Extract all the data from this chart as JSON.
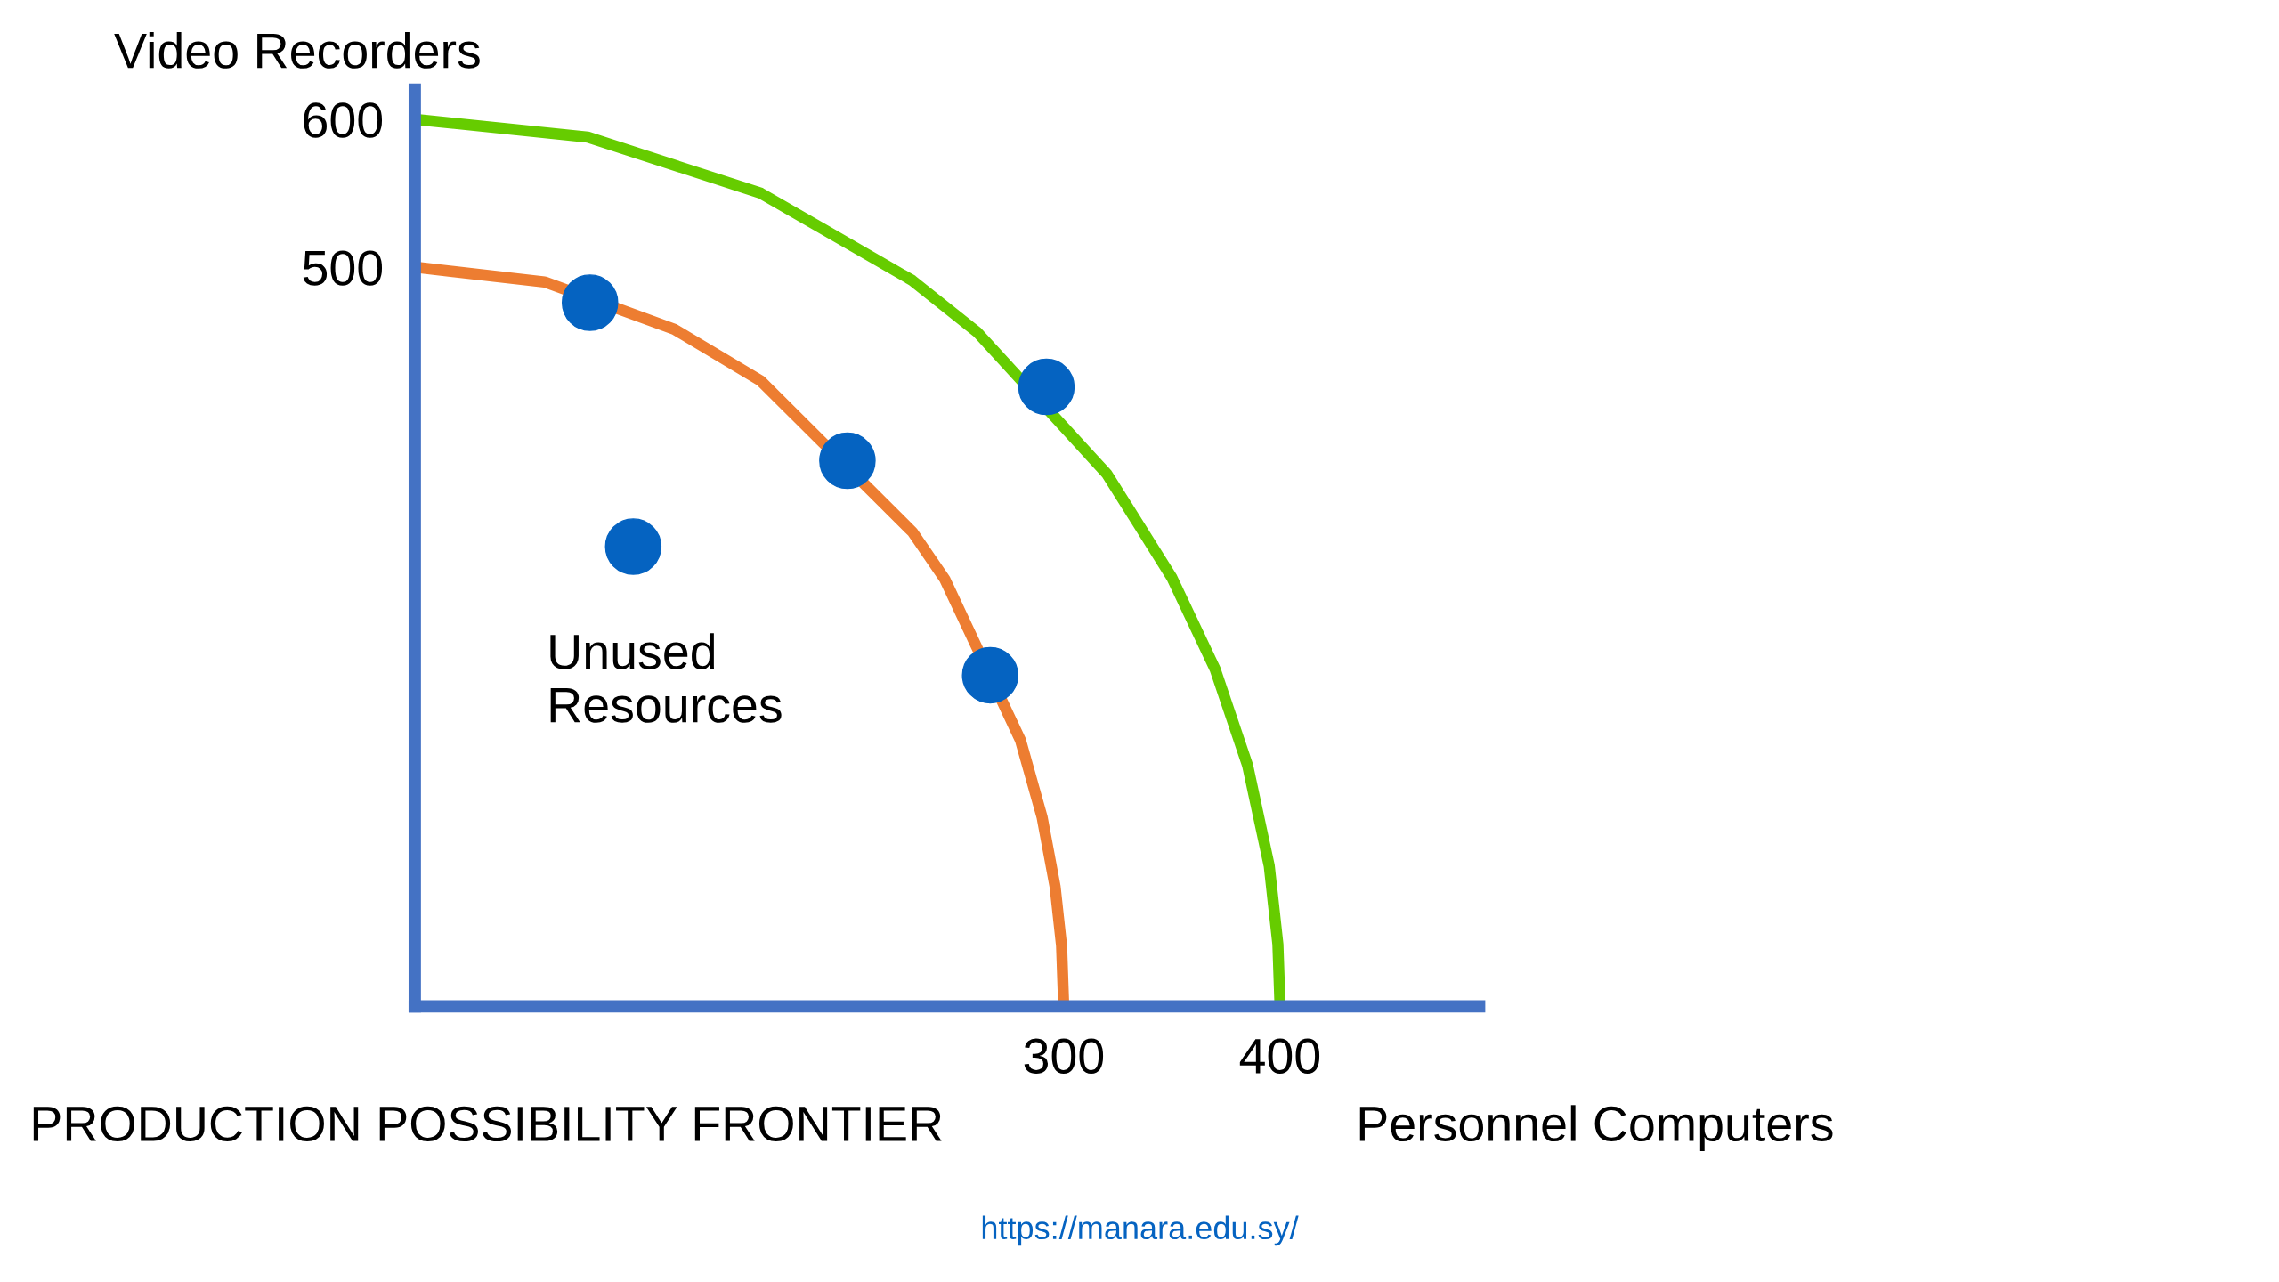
{
  "chart_data": {
    "type": "line",
    "title": "PRODUCTION POSSIBILITY FRONTIER",
    "xlabel": "Personnel Computers",
    "ylabel": "Video Recorders",
    "series": [
      {
        "color": "#ed7d31",
        "x": [
          0,
          60,
          120,
          160,
          230,
          245,
          280,
          290,
          296,
          299,
          300
        ],
        "values": [
          500,
          490,
          458,
          423,
          321,
          289,
          180,
          128,
          81,
          41,
          0
        ]
      },
      {
        "color": "#66cc00",
        "x": [
          0,
          80,
          160,
          230,
          260,
          320,
          350,
          370,
          385,
          395,
          399,
          400
        ],
        "values": [
          600,
          588,
          550,
          491,
          456,
          360,
          290,
          228,
          163,
          95,
          42,
          0
        ]
      },
      {
        "type": "scatter",
        "color": "#0563c1",
        "marker": "circle",
        "x": [
          81,
          200,
          266,
          292,
          101
        ],
        "values": [
          476,
          369,
          224,
          419,
          311
        ]
      }
    ],
    "xlim": [
      0,
      492
    ],
    "ylim": [
      0,
      620
    ],
    "xticks": [
      300,
      400
    ],
    "yticks": [
      500,
      600
    ],
    "grid": false,
    "legend": false,
    "annotations": [
      {
        "text": "Unused\nResources",
        "x": 101,
        "y": 311
      },
      "https://manara.edu.sy/"
    ]
  }
}
